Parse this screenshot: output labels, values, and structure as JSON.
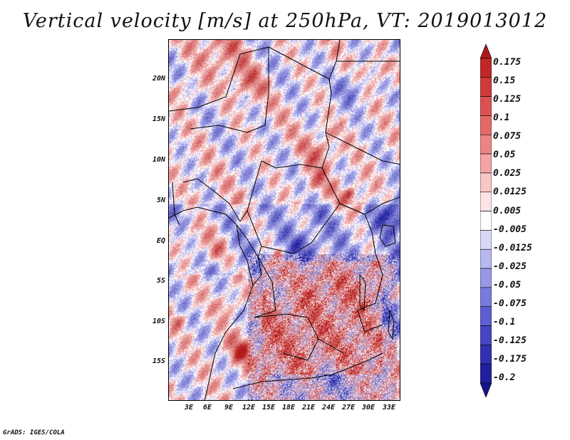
{
  "title": "Vertical velocity [m/s] at 250hPa, VT: 2019013012",
  "footer": "GrADS: IGES/COLA",
  "map": {
    "region": "Central Africa",
    "latitude_labels": [
      "20N",
      "15N",
      "10N",
      "5N",
      "EQ",
      "5S",
      "10S",
      "15S"
    ],
    "longitude_labels": [
      "3E",
      "6E",
      "9E",
      "12E",
      "15E",
      "18E",
      "21E",
      "24E",
      "27E",
      "30E",
      "33E"
    ]
  },
  "colorbar": {
    "labels": [
      "0.175",
      "0.15",
      "0.125",
      "0.1",
      "0.075",
      "0.05",
      "0.025",
      "0.0125",
      "0.005",
      "-0.005",
      "-0.0125",
      "-0.025",
      "-0.05",
      "-0.075",
      "-0.1",
      "-0.125",
      "-0.175",
      "-0.2"
    ],
    "colors": [
      "#b01a1a",
      "#c02828",
      "#cf3a3a",
      "#dc5252",
      "#e46a6a",
      "#ec8484",
      "#f4a4a4",
      "#f8c6c6",
      "#fde4e4",
      "#ffffff",
      "#d8d8f8",
      "#b8b8f0",
      "#9898e6",
      "#7a7adc",
      "#5e5ed0",
      "#4646c2",
      "#3030b0",
      "#20209c",
      "#14148a"
    ]
  }
}
